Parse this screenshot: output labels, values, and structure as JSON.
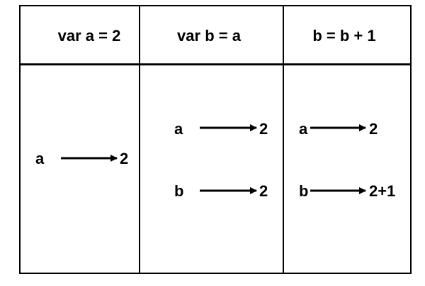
{
  "columns": [
    {
      "header": "var a = 2",
      "bindings": [
        {
          "var": "a",
          "value": "2"
        }
      ]
    },
    {
      "header": "var b = a",
      "bindings": [
        {
          "var": "a",
          "value": "2"
        },
        {
          "var": "b",
          "value": "2"
        }
      ]
    },
    {
      "header": "b = b + 1",
      "bindings": [
        {
          "var": "a",
          "value": "2"
        },
        {
          "var": "b",
          "value": "2+1"
        }
      ]
    }
  ],
  "colors": {
    "line": "#000000",
    "background": "#ffffff"
  }
}
